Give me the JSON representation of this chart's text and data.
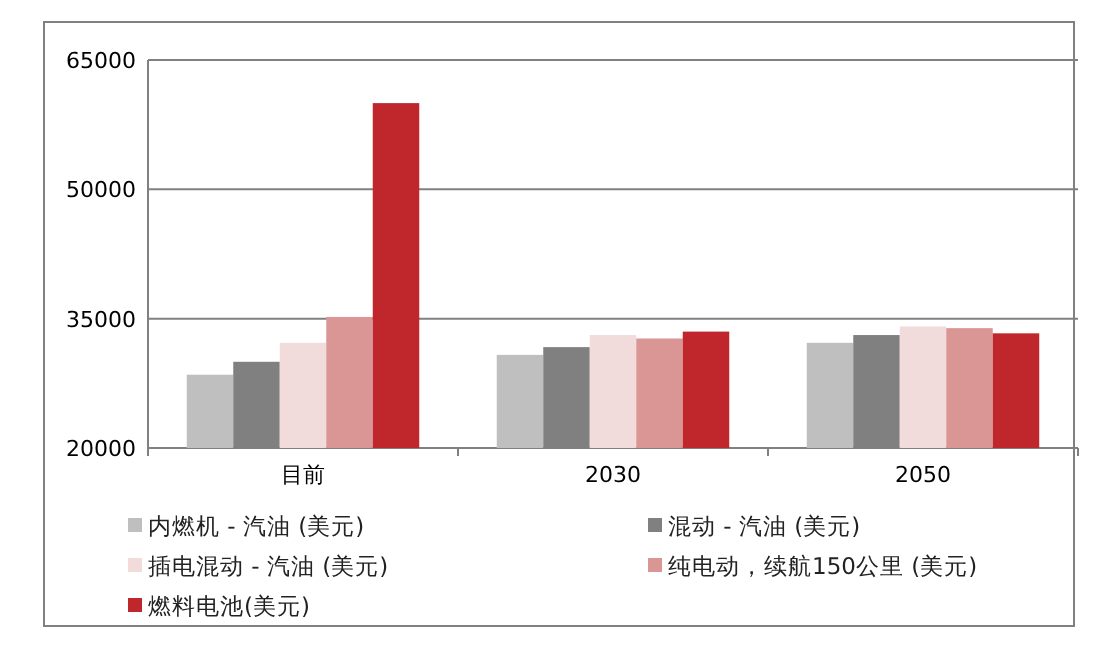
{
  "chart_data": {
    "type": "bar",
    "categories": [
      "目前",
      "2030",
      "2050"
    ],
    "series": [
      {
        "name": "内燃机 - 汽油 (美元)",
        "color": "#bfbfbf",
        "values": [
          28500,
          30800,
          32200
        ]
      },
      {
        "name": "混动 - 汽油 (美元)",
        "color": "#808080",
        "values": [
          30000,
          31700,
          33100
        ]
      },
      {
        "name": "插电混动 - 汽油 (美元)",
        "color": "#f2dcdb",
        "values": [
          32200,
          33100,
          34100
        ]
      },
      {
        "name": "纯电动，续航150公里 (美元)",
        "color": "#d99694",
        "values": [
          35200,
          32700,
          33900
        ]
      },
      {
        "name": "燃料电池(美元)",
        "color": "#c0272d",
        "values": [
          60000,
          33500,
          33300
        ]
      }
    ],
    "ylim": [
      20000,
      65000
    ],
    "yticks": [
      20000,
      35000,
      50000,
      65000
    ],
    "grid": "y",
    "legend": "bottom"
  }
}
